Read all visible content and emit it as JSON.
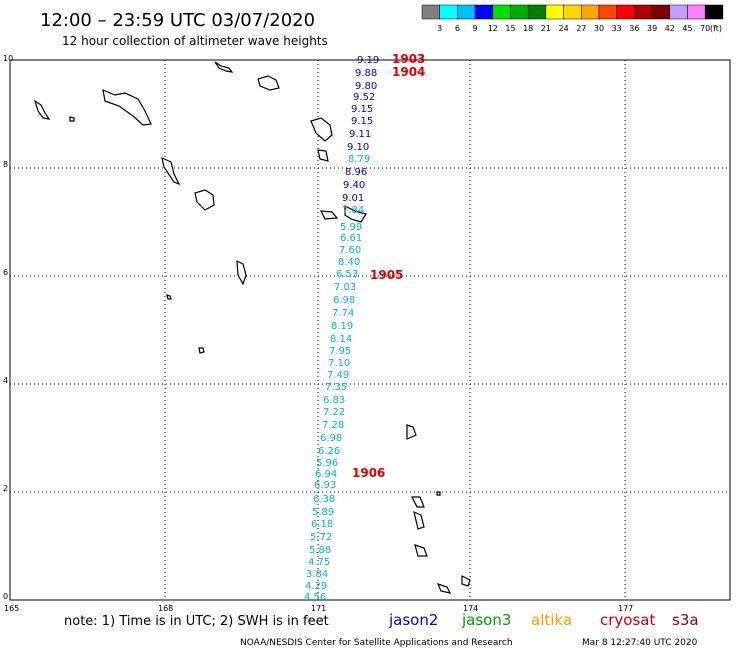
{
  "header": {
    "title": "12:00 – 23:59 UTC 03/07/2020",
    "subtitle": "12 hour collection of altimeter wave heights"
  },
  "colorbar": {
    "labels": [
      "3",
      "6",
      "9",
      "12",
      "15",
      "18",
      "21",
      "24",
      "27",
      "30",
      "33",
      "36",
      "39",
      "42",
      "45",
      "70"
    ],
    "unit": "(ft)",
    "colors": [
      "#7f7f7f",
      "#00ffff",
      "#00bfff",
      "#0000ff",
      "#00e000",
      "#00b000",
      "#008000",
      "#ffff00",
      "#ffd700",
      "#ffa500",
      "#ff4500",
      "#ff0000",
      "#b00000",
      "#800000",
      "#c0a0ff",
      "#ff80ff",
      "#000000"
    ]
  },
  "axes": {
    "x_ticks": [
      "165",
      "168",
      "171",
      "174",
      "177"
    ],
    "y_ticks": [
      "0",
      "2",
      "4",
      "6",
      "8",
      "10"
    ]
  },
  "track_values": {
    "dark_blue": [
      "9.19",
      "9.88",
      "9.80",
      "9.52",
      "9.15",
      "9.15",
      "9.11",
      "9.10",
      "8.96",
      "9.40",
      "9.01"
    ],
    "light_blue": [
      "8.79",
      "7.84",
      "5.99",
      "6.61",
      "7.60",
      "8.40",
      "6.53",
      "7.03",
      "6.98",
      "7.74",
      "8.19",
      "8.14",
      "7.95",
      "7.10",
      "7.49",
      "7.35",
      "6.83",
      "7.22",
      "7.28",
      "6.98",
      "6.26",
      "5.96",
      "6.94",
      "6.93",
      "6.38",
      "5.89",
      "6.18",
      "5.72",
      "5.88",
      "4.75",
      "3.84",
      "4.29",
      "4.56"
    ]
  },
  "pass_labels": [
    "1903",
    "1904",
    "1905",
    "1906"
  ],
  "footer": {
    "note": "note: 1) Time is in UTC; 2) SWH is in feet",
    "satellites": [
      {
        "name": "jason2",
        "color": "#0000cc"
      },
      {
        "name": "jason3",
        "color": "#009900"
      },
      {
        "name": "altika",
        "color": "#ff9900"
      },
      {
        "name": "cryosat",
        "color": "#cc0000"
      },
      {
        "name": "s3a",
        "color": "#990000"
      }
    ],
    "credit": "NOAA/NESDIS Center for Satellite Applications and Research",
    "timestamp": "Mar  8 12:27:40 UTC 2020"
  },
  "colors": {
    "dark_blue": "#0000cc",
    "light_blue": "#00b0d8",
    "pass_red": "#dd0000"
  }
}
